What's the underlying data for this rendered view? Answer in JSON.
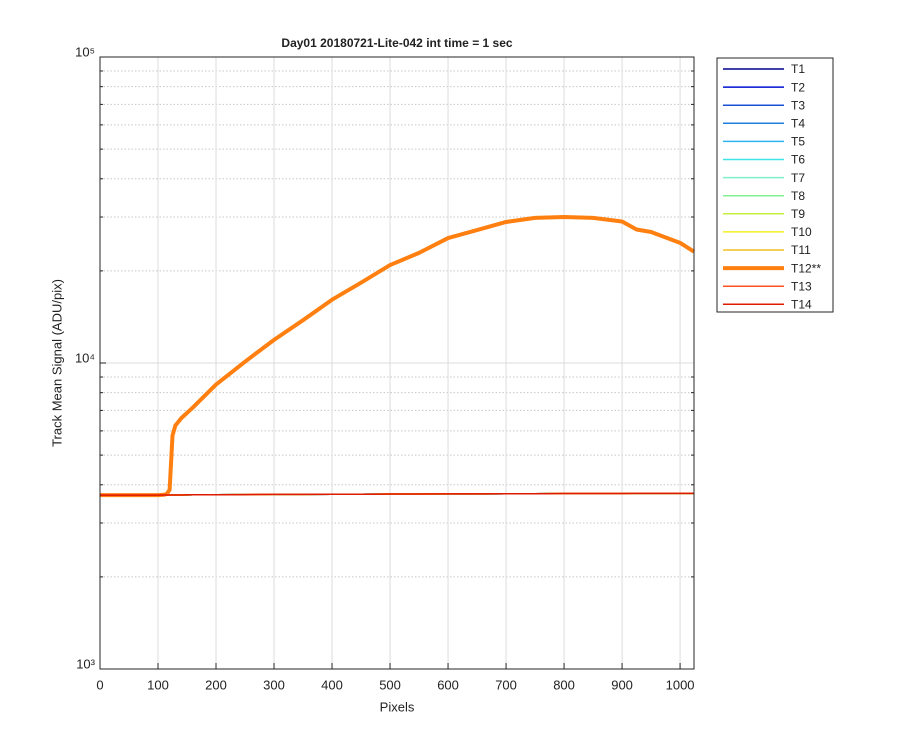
{
  "chart_data": {
    "type": "line",
    "title": "Day01 20180721-Lite-042 int time = 1 sec",
    "xlabel": "Pixels",
    "ylabel": "Track Mean Signal (ADU/pix)",
    "xlim": [
      0,
      1024
    ],
    "xticks": [
      0,
      100,
      200,
      300,
      400,
      500,
      600,
      700,
      800,
      900,
      1000
    ],
    "ylim": [
      1000,
      100000
    ],
    "log_y": true,
    "grid": true,
    "yticks": [
      {
        "value": 1000,
        "label": "10³"
      },
      {
        "value": 10000,
        "label": "10⁴"
      },
      {
        "value": 100000,
        "label": "10⁵"
      }
    ],
    "yminorticks": [
      2000,
      3000,
      4000,
      5000,
      6000,
      7000,
      8000,
      9000,
      20000,
      30000,
      40000,
      50000,
      60000,
      70000,
      80000,
      90000
    ],
    "legend": "outside-right",
    "x": [
      0,
      50,
      100,
      110,
      115,
      120,
      125,
      130,
      140,
      160,
      200,
      250,
      300,
      350,
      400,
      450,
      500,
      550,
      600,
      650,
      700,
      750,
      800,
      850,
      900,
      925,
      950,
      1000,
      1024
    ],
    "series": [
      {
        "name": "T1",
        "color": "#00008f",
        "values": [
          3700,
          3700,
          3700,
          3705,
          3705,
          3705,
          3705,
          3705,
          3705,
          3710,
          3710,
          3715,
          3720,
          3720,
          3725,
          3725,
          3730,
          3730,
          3735,
          3735,
          3740,
          3740,
          3745,
          3745,
          3745,
          3750,
          3750,
          3750,
          3750
        ]
      },
      {
        "name": "T2",
        "color": "#0010d0",
        "values": [
          3700,
          3700,
          3700,
          3705,
          3705,
          3705,
          3705,
          3705,
          3705,
          3710,
          3710,
          3715,
          3720,
          3720,
          3725,
          3725,
          3730,
          3730,
          3735,
          3735,
          3740,
          3740,
          3745,
          3745,
          3745,
          3750,
          3750,
          3750,
          3750
        ]
      },
      {
        "name": "T3",
        "color": "#1a50d8",
        "values": [
          3700,
          3700,
          3700,
          3705,
          3705,
          3705,
          3705,
          3705,
          3705,
          3710,
          3710,
          3715,
          3720,
          3720,
          3725,
          3725,
          3730,
          3730,
          3735,
          3735,
          3740,
          3740,
          3745,
          3745,
          3745,
          3750,
          3750,
          3750,
          3750
        ]
      },
      {
        "name": "T4",
        "color": "#2080e0",
        "values": [
          3700,
          3700,
          3700,
          3705,
          3705,
          3705,
          3705,
          3705,
          3705,
          3710,
          3710,
          3715,
          3720,
          3720,
          3725,
          3725,
          3730,
          3730,
          3735,
          3735,
          3740,
          3740,
          3745,
          3745,
          3745,
          3750,
          3750,
          3750,
          3750
        ]
      },
      {
        "name": "T5",
        "color": "#30b4f0",
        "values": [
          3700,
          3700,
          3700,
          3705,
          3705,
          3705,
          3705,
          3705,
          3705,
          3710,
          3710,
          3715,
          3720,
          3720,
          3725,
          3725,
          3730,
          3730,
          3735,
          3735,
          3740,
          3740,
          3745,
          3745,
          3745,
          3750,
          3750,
          3750,
          3750
        ]
      },
      {
        "name": "T6",
        "color": "#40e4e8",
        "values": [
          3700,
          3700,
          3700,
          3705,
          3705,
          3705,
          3705,
          3705,
          3705,
          3710,
          3710,
          3715,
          3720,
          3720,
          3725,
          3725,
          3730,
          3730,
          3735,
          3735,
          3740,
          3740,
          3745,
          3745,
          3745,
          3750,
          3750,
          3750,
          3750
        ]
      },
      {
        "name": "T7",
        "color": "#80f0c8",
        "values": [
          3700,
          3700,
          3700,
          3705,
          3705,
          3705,
          3705,
          3705,
          3705,
          3710,
          3710,
          3715,
          3720,
          3720,
          3725,
          3725,
          3730,
          3730,
          3735,
          3735,
          3740,
          3740,
          3745,
          3745,
          3745,
          3750,
          3750,
          3750,
          3750
        ]
      },
      {
        "name": "T8",
        "color": "#80f090",
        "values": [
          3700,
          3700,
          3700,
          3705,
          3705,
          3705,
          3705,
          3705,
          3705,
          3710,
          3710,
          3715,
          3720,
          3720,
          3725,
          3725,
          3730,
          3730,
          3735,
          3735,
          3740,
          3740,
          3745,
          3745,
          3745,
          3750,
          3750,
          3750,
          3750
        ]
      },
      {
        "name": "T9",
        "color": "#c4f040",
        "values": [
          3700,
          3700,
          3700,
          3705,
          3705,
          3705,
          3705,
          3705,
          3705,
          3710,
          3710,
          3715,
          3720,
          3720,
          3725,
          3725,
          3730,
          3730,
          3735,
          3735,
          3740,
          3740,
          3745,
          3745,
          3745,
          3750,
          3750,
          3750,
          3750
        ]
      },
      {
        "name": "T10",
        "color": "#f4f020",
        "values": [
          3700,
          3700,
          3700,
          3705,
          3705,
          3705,
          3705,
          3705,
          3705,
          3710,
          3710,
          3715,
          3720,
          3720,
          3725,
          3725,
          3730,
          3730,
          3735,
          3735,
          3740,
          3740,
          3745,
          3745,
          3745,
          3750,
          3750,
          3750,
          3750
        ]
      },
      {
        "name": "T11",
        "color": "#f0c020",
        "values": [
          3700,
          3700,
          3700,
          3705,
          3705,
          3705,
          3705,
          3705,
          3705,
          3710,
          3710,
          3715,
          3720,
          3720,
          3725,
          3725,
          3730,
          3730,
          3735,
          3735,
          3740,
          3740,
          3745,
          3745,
          3745,
          3750,
          3750,
          3750,
          3750
        ]
      },
      {
        "name": "T12**",
        "color": "#ff8010",
        "linewidth": 4,
        "values": [
          3700,
          3700,
          3700,
          3710,
          3730,
          3850,
          5800,
          6250,
          6600,
          7150,
          8500,
          10100,
          11900,
          13800,
          16100,
          18300,
          20900,
          22900,
          25600,
          27200,
          28900,
          29800,
          30000,
          29800,
          29000,
          27300,
          26800,
          24700,
          23100
        ]
      },
      {
        "name": "T13",
        "color": "#ff5020",
        "values": [
          3700,
          3700,
          3700,
          3705,
          3705,
          3705,
          3705,
          3705,
          3705,
          3710,
          3710,
          3715,
          3720,
          3720,
          3725,
          3725,
          3730,
          3730,
          3735,
          3735,
          3740,
          3740,
          3745,
          3745,
          3745,
          3750,
          3750,
          3750,
          3750
        ]
      },
      {
        "name": "T14",
        "color": "#e01a00",
        "values": [
          3700,
          3700,
          3700,
          3705,
          3705,
          3705,
          3705,
          3705,
          3705,
          3710,
          3710,
          3715,
          3720,
          3720,
          3725,
          3725,
          3730,
          3730,
          3735,
          3735,
          3740,
          3740,
          3745,
          3745,
          3745,
          3750,
          3750,
          3750,
          3750
        ]
      }
    ]
  }
}
